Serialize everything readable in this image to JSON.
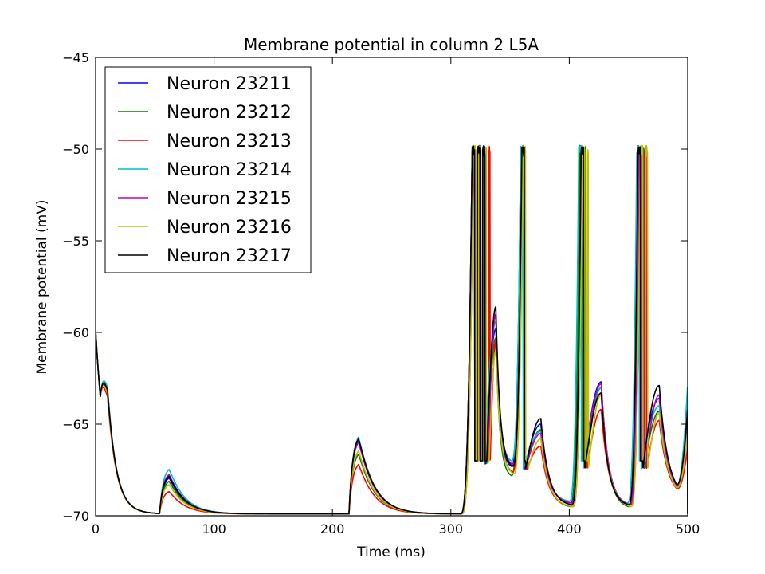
{
  "chart_data": {
    "type": "line",
    "title": "Membrane potential in column 2 L5A",
    "xlabel": "Time (ms)",
    "ylabel": "Membrane potential (mV)",
    "xlim": [
      0,
      500
    ],
    "ylim": [
      -70,
      -45
    ],
    "xticks": [
      0,
      100,
      200,
      300,
      400,
      500
    ],
    "yticks": [
      -70,
      -65,
      -60,
      -55,
      -50,
      -45
    ],
    "xtick_labels": [
      "0",
      "100",
      "200",
      "300",
      "400",
      "500"
    ],
    "ytick_labels": [
      "−70",
      "−65",
      "−60",
      "−55",
      "−50",
      "−45"
    ],
    "grid": false,
    "legend_position": "top-left",
    "series": [
      {
        "name": "Neuron 23211",
        "color": "#0000ff",
        "seed": 1,
        "bumps": [
          [
            10,
            -65.8
          ],
          [
            62,
            -67.8
          ],
          [
            222,
            -65.6
          ],
          [
            338,
            -59.8
          ],
          [
            376,
            -65.0
          ],
          [
            427,
            -62.7
          ],
          [
            476,
            -63.6
          ]
        ],
        "spikes": [
          [
            318,
            329
          ],
          [
            359,
            362
          ],
          [
            409,
            412
          ],
          [
            458,
            461
          ]
        ],
        "mins": [
          -67.3,
          -69.3,
          -69.4
        ],
        "end": -64.7
      },
      {
        "name": "Neuron 23212",
        "color": "#008000",
        "seed": 2,
        "bumps": [
          [
            10,
            -66.0
          ],
          [
            62,
            -68.0
          ],
          [
            222,
            -66.4
          ],
          [
            338,
            -60.3
          ],
          [
            376,
            -65.3
          ],
          [
            427,
            -63.0
          ],
          [
            476,
            -64.3
          ]
        ],
        "spikes": [
          [
            318,
            330
          ],
          [
            359,
            363
          ],
          [
            409,
            414
          ],
          [
            458,
            463
          ]
        ],
        "mins": [
          -67.8,
          -69.5,
          -69.5
        ],
        "end": -65.0
      },
      {
        "name": "Neuron 23213",
        "color": "#ff0000",
        "seed": 3,
        "bumps": [
          [
            10,
            -66.3
          ],
          [
            62,
            -68.6
          ],
          [
            222,
            -67.0
          ],
          [
            338,
            -60.5
          ],
          [
            376,
            -66.2
          ],
          [
            427,
            -64.2
          ],
          [
            476,
            -64.8
          ]
        ],
        "spikes": [
          [
            319,
            333
          ],
          [
            360,
            364
          ],
          [
            411,
            415
          ],
          [
            460,
            465
          ]
        ],
        "mins": [
          -67.6,
          -69.5,
          -69.4
        ],
        "end": -66.2
      },
      {
        "name": "Neuron 23214",
        "color": "#00bfbf",
        "seed": 4,
        "bumps": [
          [
            10,
            -65.7
          ],
          [
            62,
            -67.3
          ],
          [
            222,
            -65.4
          ],
          [
            338,
            -59.4
          ],
          [
            376,
            -65.4
          ],
          [
            427,
            -63.0
          ],
          [
            476,
            -64.0
          ]
        ],
        "spikes": [
          [
            318,
            328
          ],
          [
            359,
            361
          ],
          [
            408,
            412
          ],
          [
            457,
            461
          ]
        ],
        "mins": [
          -67.0,
          -69.2,
          -69.3
        ],
        "end": -62.7
      },
      {
        "name": "Neuron 23215",
        "color": "#bf00bf",
        "seed": 5,
        "bumps": [
          [
            10,
            -65.9
          ],
          [
            62,
            -67.6
          ],
          [
            222,
            -65.7
          ],
          [
            338,
            -59.0
          ],
          [
            376,
            -65.5
          ],
          [
            427,
            -62.8
          ],
          [
            476,
            -63.4
          ]
        ],
        "spikes": [
          [
            318,
            331
          ],
          [
            360,
            363
          ],
          [
            410,
            413
          ],
          [
            459,
            464
          ]
        ],
        "mins": [
          -67.2,
          -69.3,
          -69.4
        ],
        "end": -64.5
      },
      {
        "name": "Neuron 23216",
        "color": "#bfbf00",
        "seed": 6,
        "bumps": [
          [
            10,
            -66.1
          ],
          [
            62,
            -68.2
          ],
          [
            222,
            -66.2
          ],
          [
            338,
            -61.0
          ],
          [
            376,
            -65.8
          ],
          [
            427,
            -63.4
          ],
          [
            476,
            -64.4
          ]
        ],
        "spikes": [
          [
            319,
            332
          ],
          [
            361,
            365
          ],
          [
            411,
            416
          ],
          [
            460,
            466
          ]
        ],
        "mins": [
          -67.7,
          -69.5,
          -69.5
        ],
        "end": -65.3
      },
      {
        "name": "Neuron 23217",
        "color": "#000000",
        "seed": 7,
        "bumps": [
          [
            10,
            -65.9
          ],
          [
            62,
            -67.7
          ],
          [
            222,
            -65.5
          ],
          [
            338,
            -58.6
          ],
          [
            376,
            -64.7
          ],
          [
            427,
            -63.3
          ],
          [
            476,
            -62.9
          ]
        ],
        "spikes": [
          [
            318,
            330
          ],
          [
            360,
            363
          ],
          [
            410,
            413
          ],
          [
            458,
            462
          ]
        ],
        "mins": [
          -67.3,
          -69.4,
          -69.4
        ],
        "end": -64.0
      }
    ]
  }
}
